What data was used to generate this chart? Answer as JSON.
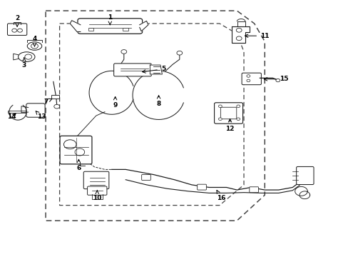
{
  "bg_color": "#ffffff",
  "line_color": "#1a1a1a",
  "figsize": [
    4.89,
    3.6
  ],
  "dpi": 100,
  "labels": {
    "1": [
      0.315,
      0.895,
      0.315,
      0.935
    ],
    "2": [
      0.048,
      0.895,
      0.048,
      0.93
    ],
    "3": [
      0.068,
      0.778,
      0.068,
      0.748
    ],
    "4": [
      0.098,
      0.818,
      0.098,
      0.85
    ],
    "5": [
      0.4,
      0.72,
      0.468,
      0.732
    ],
    "6": [
      0.225,
      0.39,
      0.225,
      0.345
    ],
    "7": [
      0.155,
      0.62,
      0.13,
      0.605
    ],
    "8": [
      0.455,
      0.64,
      0.455,
      0.595
    ],
    "9": [
      0.33,
      0.635,
      0.33,
      0.59
    ],
    "10": [
      0.278,
      0.268,
      0.278,
      0.228
    ],
    "11": [
      0.695,
      0.862,
      0.76,
      0.862
    ],
    "12": [
      0.66,
      0.548,
      0.66,
      0.498
    ],
    "13": [
      0.1,
      0.57,
      0.118,
      0.545
    ],
    "14": [
      0.05,
      0.565,
      0.032,
      0.545
    ],
    "15": [
      0.75,
      0.693,
      0.815,
      0.693
    ],
    "16": [
      0.618,
      0.268,
      0.635,
      0.228
    ]
  }
}
